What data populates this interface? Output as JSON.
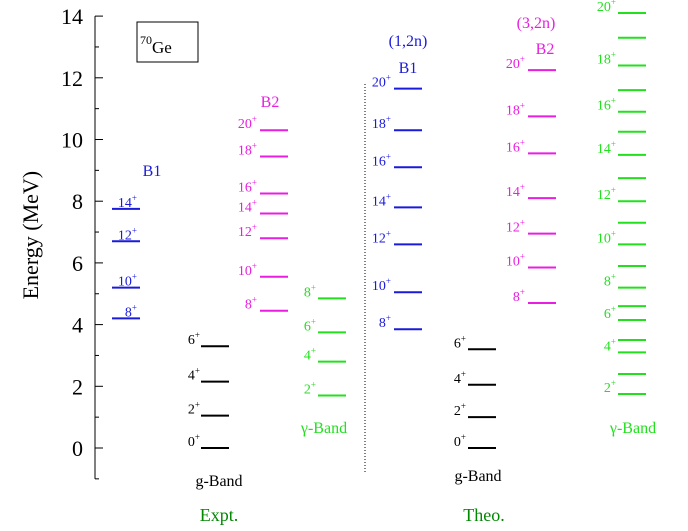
{
  "colors": {
    "B1": "#1a1adb",
    "B2": "#e81ee0",
    "gamma": "#22e01e",
    "g": "#000000",
    "group": "#008800",
    "axis": "#000000"
  },
  "chart_data": {
    "type": "level-scheme",
    "ylabel": "Energy (MeV)",
    "ylim": [
      -1,
      14
    ],
    "yticks": [
      "0",
      "2",
      "4",
      "6",
      "8",
      "10",
      "12",
      "14"
    ],
    "nucleus": {
      "mass": "70",
      "symbol": "Ge"
    },
    "groups": [
      {
        "name": "Expt.",
        "divider": true
      },
      {
        "name": "Theo.",
        "divider": false
      }
    ],
    "bands": [
      {
        "group": 0,
        "key": "B1",
        "title": "B1",
        "subtitle": "",
        "levels": [
          {
            "spin": "8",
            "energy": 4.2
          },
          {
            "spin": "10",
            "energy": 5.2
          },
          {
            "spin": "12",
            "energy": 6.7
          },
          {
            "spin": "14",
            "energy": 7.75
          }
        ]
      },
      {
        "group": 0,
        "key": "g",
        "title": "g-Band",
        "subtitle": "",
        "levels": [
          {
            "spin": "0",
            "energy": 0.0
          },
          {
            "spin": "2",
            "energy": 1.05
          },
          {
            "spin": "4",
            "energy": 2.15
          },
          {
            "spin": "6",
            "energy": 3.3
          }
        ]
      },
      {
        "group": 0,
        "key": "B2",
        "title": "B2",
        "subtitle": "",
        "levels": [
          {
            "spin": "8",
            "energy": 4.45
          },
          {
            "spin": "10",
            "energy": 5.55
          },
          {
            "spin": "12",
            "energy": 6.8
          },
          {
            "spin": "14",
            "energy": 7.6
          },
          {
            "spin": "16",
            "energy": 8.25
          },
          {
            "spin": "18",
            "energy": 9.45
          },
          {
            "spin": "20",
            "energy": 10.3
          }
        ]
      },
      {
        "group": 0,
        "key": "gamma",
        "title": "γ-Band",
        "subtitle": "",
        "levels": [
          {
            "spin": "2",
            "energy": 1.7
          },
          {
            "spin": "4",
            "energy": 2.8
          },
          {
            "spin": "6",
            "energy": 3.75
          },
          {
            "spin": "8",
            "energy": 4.85
          }
        ]
      },
      {
        "group": 1,
        "key": "B1",
        "title": "B1",
        "subtitle": "(1,2n)",
        "levels": [
          {
            "spin": "8",
            "energy": 3.85
          },
          {
            "spin": "10",
            "energy": 5.05
          },
          {
            "spin": "12",
            "energy": 6.6
          },
          {
            "spin": "14",
            "energy": 7.8
          },
          {
            "spin": "16",
            "energy": 9.1
          },
          {
            "spin": "18",
            "energy": 10.3
          },
          {
            "spin": "20",
            "energy": 11.65
          }
        ]
      },
      {
        "group": 1,
        "key": "g",
        "title": "g-Band",
        "subtitle": "",
        "levels": [
          {
            "spin": "0",
            "energy": 0.0
          },
          {
            "spin": "2",
            "energy": 1.0
          },
          {
            "spin": "4",
            "energy": 2.05
          },
          {
            "spin": "6",
            "energy": 3.2
          }
        ]
      },
      {
        "group": 1,
        "key": "B2",
        "title": "B2",
        "subtitle": "(3,2n)",
        "levels": [
          {
            "spin": "8",
            "energy": 4.7
          },
          {
            "spin": "10",
            "energy": 5.85
          },
          {
            "spin": "12",
            "energy": 6.95
          },
          {
            "spin": "14",
            "energy": 8.1
          },
          {
            "spin": "16",
            "energy": 9.55
          },
          {
            "spin": "18",
            "energy": 10.75
          },
          {
            "spin": "20",
            "energy": 12.25
          }
        ]
      },
      {
        "group": 1,
        "key": "gamma",
        "title": "γ-Band",
        "subtitle": "",
        "levels": [
          {
            "spin": "2",
            "energy": 1.75
          },
          {
            "spin": "",
            "energy": 2.4
          },
          {
            "spin": "4",
            "energy": 3.1
          },
          {
            "spin": "",
            "energy": 3.5
          },
          {
            "spin": "6",
            "energy": 4.15
          },
          {
            "spin": "",
            "energy": 4.6
          },
          {
            "spin": "8",
            "energy": 5.2
          },
          {
            "spin": "",
            "energy": 5.9
          },
          {
            "spin": "10",
            "energy": 6.6
          },
          {
            "spin": "",
            "energy": 7.3
          },
          {
            "spin": "12",
            "energy": 8.0
          },
          {
            "spin": "",
            "energy": 8.75
          },
          {
            "spin": "14",
            "energy": 9.5
          },
          {
            "spin": "",
            "energy": 10.25
          },
          {
            "spin": "16",
            "energy": 10.9
          },
          {
            "spin": "",
            "energy": 11.6
          },
          {
            "spin": "18",
            "energy": 12.4
          },
          {
            "spin": "",
            "energy": 13.3
          },
          {
            "spin": "20",
            "energy": 14.1
          }
        ]
      }
    ]
  }
}
